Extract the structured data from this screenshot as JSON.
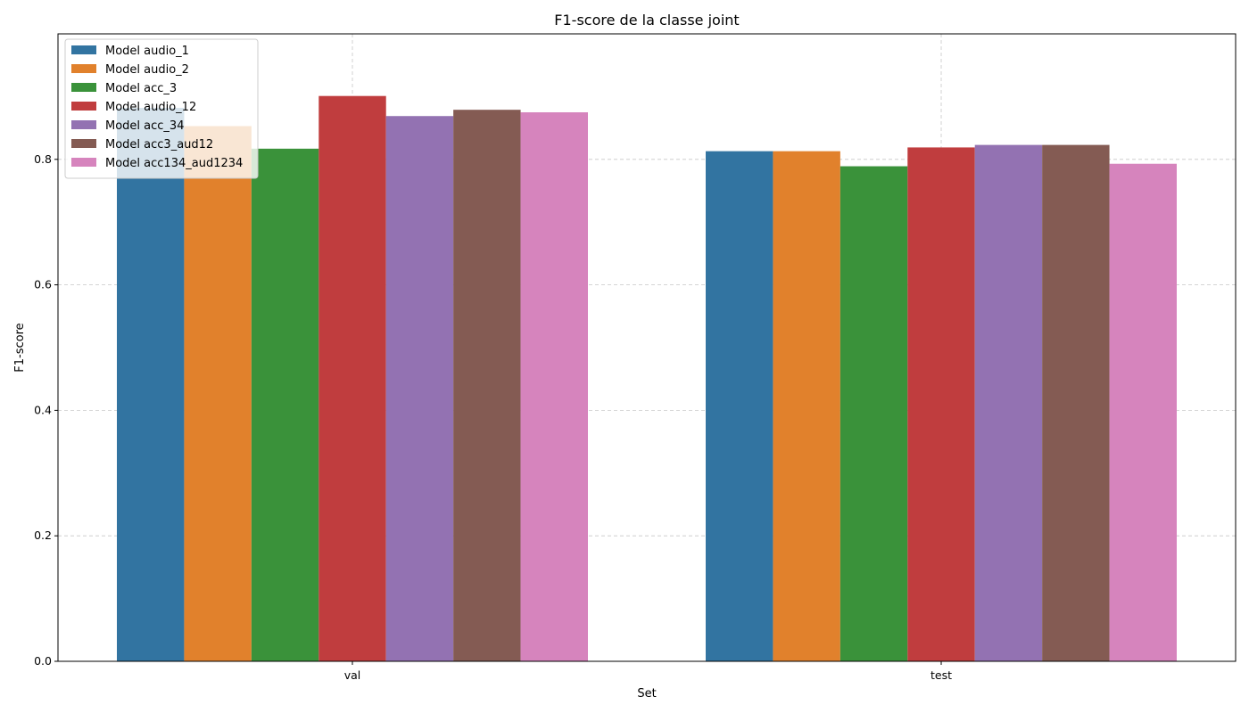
{
  "chart_data": {
    "type": "bar",
    "title": "F1-score de la classe joint",
    "xlabel": "Set",
    "ylabel": "F1-score",
    "categories": [
      "val",
      "test"
    ],
    "ylim": [
      0,
      1.0
    ],
    "yticks": [
      "0.0",
      "0.2",
      "0.4",
      "0.6",
      "0.8"
    ],
    "grid": true,
    "legend_position": "top-left",
    "series": [
      {
        "name": "Model audio_1",
        "color": "#3274a1",
        "values": [
          0.882,
          0.813
        ]
      },
      {
        "name": "Model audio_2",
        "color": "#e1812c",
        "values": [
          0.853,
          0.813
        ]
      },
      {
        "name": "Model acc_3",
        "color": "#3a923a",
        "values": [
          0.817,
          0.789
        ]
      },
      {
        "name": "Model audio_12",
        "color": "#c03d3e",
        "values": [
          0.901,
          0.819
        ]
      },
      {
        "name": "Model acc_34",
        "color": "#9372b2",
        "values": [
          0.869,
          0.823
        ]
      },
      {
        "name": "Model acc3_aud12",
        "color": "#845b53",
        "values": [
          0.879,
          0.823
        ]
      },
      {
        "name": "Model acc134_aud1234",
        "color": "#d684bd",
        "values": [
          0.875,
          0.793
        ]
      }
    ]
  }
}
